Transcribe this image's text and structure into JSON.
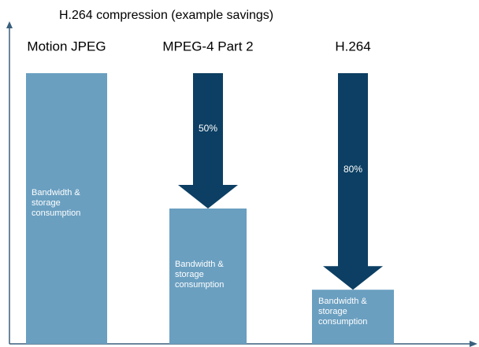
{
  "chart_data": {
    "type": "bar",
    "title": "H.264 compression (example savings)",
    "categories": [
      "Motion JPEG",
      "MPEG-4 Part 2",
      "H.264"
    ],
    "values": [
      100,
      50,
      20
    ],
    "ylim": [
      0,
      100
    ],
    "color": "#6a9fc0",
    "bar_text": [
      "Bandwidth &",
      "storage",
      "consumption"
    ],
    "savings": [
      null,
      50,
      80
    ],
    "savings_labels": [
      null,
      "50%",
      "80%"
    ],
    "arrow_color": "#0c3f63"
  }
}
